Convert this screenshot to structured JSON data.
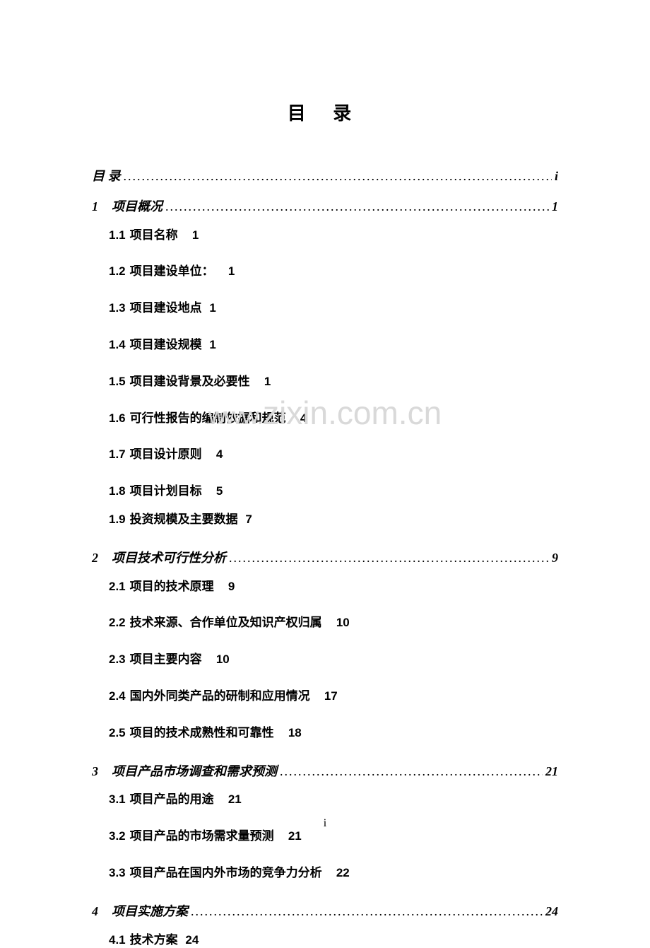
{
  "title": "目 录",
  "watermark": {
    "part1": "www.",
    "part2": "zixin.com.cn"
  },
  "footer_page": "i",
  "toc": [
    {
      "type": "section",
      "num": "",
      "label": "目   录",
      "page": "i"
    },
    {
      "type": "section",
      "num": "1",
      "label": "项目概况",
      "page": "1"
    },
    {
      "type": "sub",
      "num": "1.1",
      "label": "项目名称",
      "page": "1"
    },
    {
      "type": "sub",
      "num": "1.2",
      "label": "项目建设单位：",
      "page": "1"
    },
    {
      "type": "sub",
      "num": "1.3",
      "label": "项目建设地点",
      "page": "1",
      "nospace": true
    },
    {
      "type": "sub",
      "num": "1.4",
      "label": "项目建设规模",
      "page": "1",
      "nospace": true
    },
    {
      "type": "sub",
      "num": "1.5",
      "label": "项目建设背景及必要性",
      "page": "1"
    },
    {
      "type": "sub",
      "num": "1.6",
      "label": "可行性报告的编制依据和规范",
      "page": "4"
    },
    {
      "type": "sub",
      "num": "1.7",
      "label": "项目设计原则",
      "page": "4"
    },
    {
      "type": "sub",
      "num": "1.8",
      "label": "项目计划目标",
      "page": "5",
      "tight": true
    },
    {
      "type": "sub",
      "num": "1.9",
      "label": "投资规模及主要数据",
      "page": "7",
      "nospace": true
    },
    {
      "type": "section",
      "num": "2",
      "label": "项目技术可行性分析",
      "page": "9"
    },
    {
      "type": "sub",
      "num": "2.1",
      "label": "项目的技术原理",
      "page": "9"
    },
    {
      "type": "sub",
      "num": "2.2",
      "label": "技术来源、合作单位及知识产权归属",
      "page": "10"
    },
    {
      "type": "sub",
      "num": "2.3",
      "label": "项目主要内容",
      "page": "10"
    },
    {
      "type": "sub",
      "num": "2.4",
      "label": "国内外同类产品的研制和应用情况",
      "page": "17"
    },
    {
      "type": "sub",
      "num": "2.5",
      "label": "项目的技术成熟性和可靠性",
      "page": "18"
    },
    {
      "type": "section",
      "num": "3",
      "label": "项目产品市场调查和需求预测",
      "page": "21"
    },
    {
      "type": "sub",
      "num": "3.1",
      "label": "项目产品的用途",
      "page": "21"
    },
    {
      "type": "sub",
      "num": "3.2",
      "label": "项目产品的市场需求量预测",
      "page": "21"
    },
    {
      "type": "sub",
      "num": "3.3",
      "label": "项目产品在国内外市场的竞争力分析",
      "page": "22"
    },
    {
      "type": "section",
      "num": "4",
      "label": "项目实施方案",
      "page": "24"
    },
    {
      "type": "sub",
      "num": "4.1",
      "label": "技术方案",
      "page": "24",
      "nospace": true
    }
  ]
}
